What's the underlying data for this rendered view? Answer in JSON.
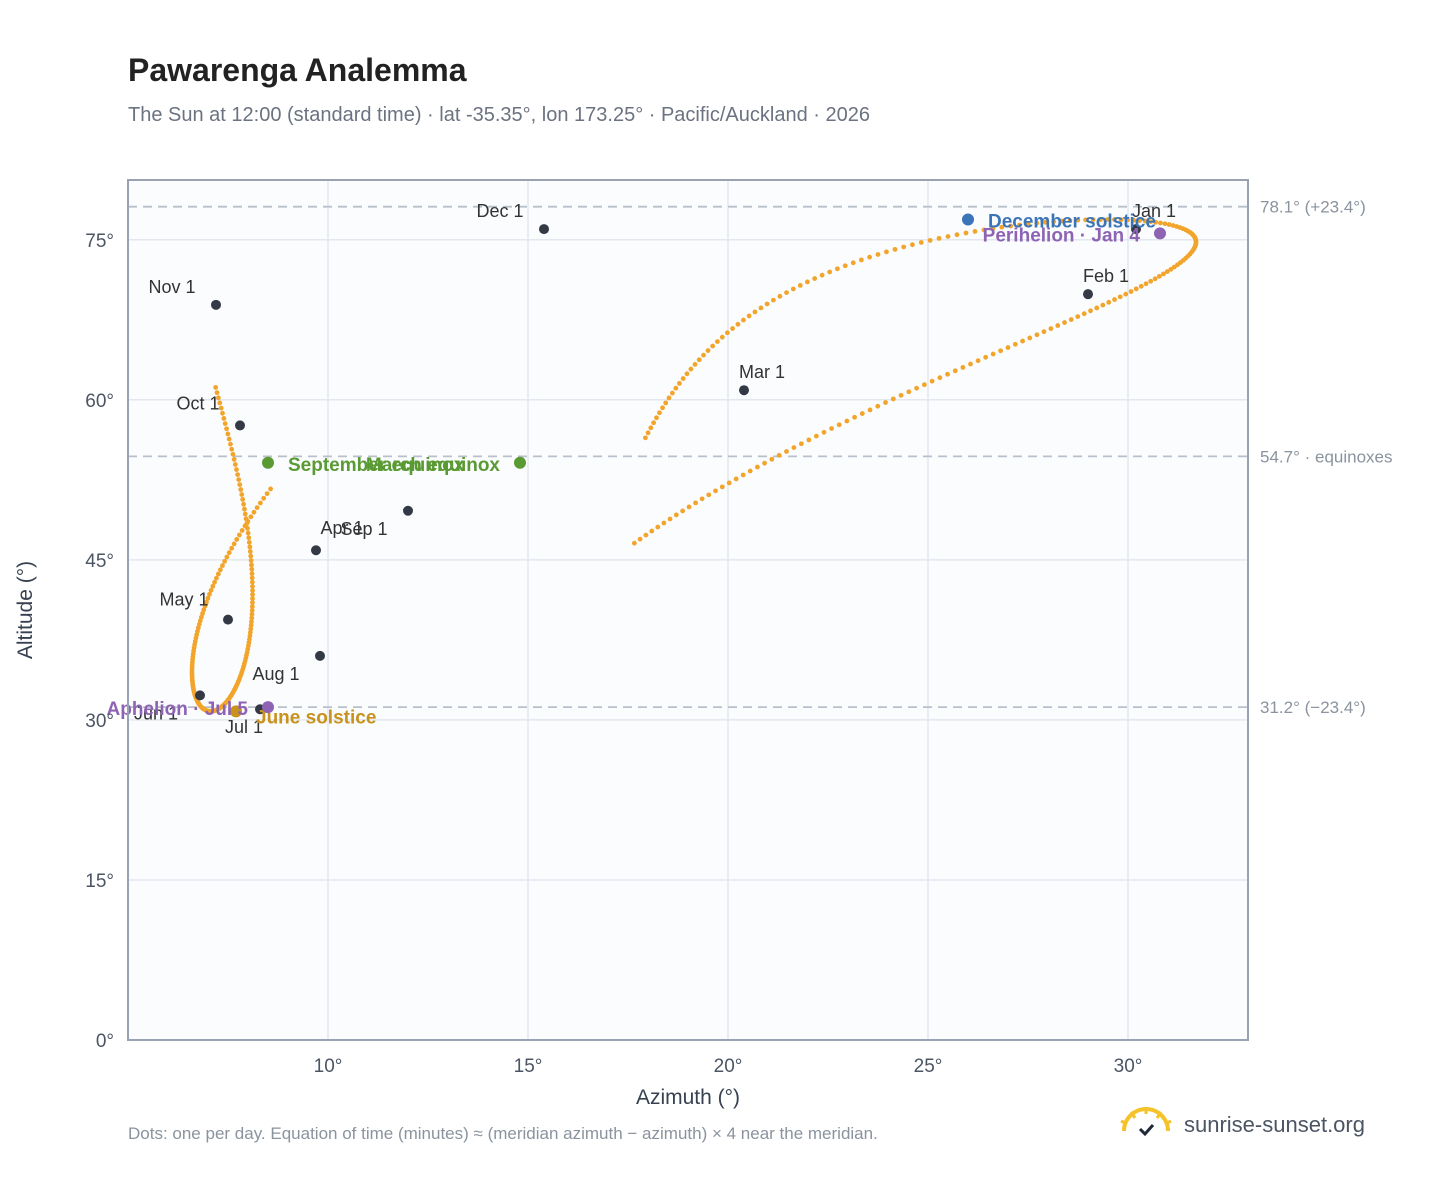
{
  "header": {
    "title": "Pawarenga Analemma",
    "subtitle": "The Sun at 12:00 (standard time) · lat -35.35°, lon 173.25° · Pacific/Auckland · 2026"
  },
  "footer": {
    "note": "Dots: one per day. Equation of time (minutes) ≈ (meridian azimuth − azimuth) × 4 near the meridian.",
    "brand": "sunrise-sunset.org"
  },
  "colors": {
    "curve": "#f2a42b",
    "month_dot": "#333a45",
    "solstice_december": "#3b74b8",
    "solstice_june": "#c8921c",
    "equinox": "#5a9a33",
    "apsis": "#8e63b4",
    "plot_bg": "#fafcfe",
    "grid": "#e3e8ef",
    "frame": "#98a2b3",
    "ref_line": "#b8c0cc"
  },
  "chart_data": {
    "type": "scatter",
    "xlabel": "Azimuth (°)",
    "ylabel": "Altitude (°)",
    "xlim": [
      5,
      33
    ],
    "ylim": [
      0,
      80.6
    ],
    "x_ticks": [
      {
        "value": 10,
        "label": "10°"
      },
      {
        "value": 15,
        "label": "15°"
      },
      {
        "value": 20,
        "label": "20°"
      },
      {
        "value": 25,
        "label": "25°"
      },
      {
        "value": 30,
        "label": "30°"
      }
    ],
    "y_ticks": [
      {
        "value": 0,
        "label": "0°"
      },
      {
        "value": 15,
        "label": "15°"
      },
      {
        "value": 30,
        "label": "30°"
      },
      {
        "value": 45,
        "label": "45°"
      },
      {
        "value": 60,
        "label": "60°"
      },
      {
        "value": 75,
        "label": "75°"
      }
    ],
    "grid": true,
    "reference_lines": [
      {
        "y": 78.1,
        "label": "78.1° (+23.4°)"
      },
      {
        "y": 54.7,
        "label": "54.7° · equinoxes"
      },
      {
        "y": 31.2,
        "label": "31.2° (−23.4°)"
      }
    ],
    "months": [
      {
        "label": "Jan 1",
        "az": 30.2,
        "alt": 76.0
      },
      {
        "label": "Feb 1",
        "az": 29.0,
        "alt": 69.9
      },
      {
        "label": "Mar 1",
        "az": 20.4,
        "alt": 60.9
      },
      {
        "label": "Apr 1",
        "az": 9.7,
        "alt": 45.9
      },
      {
        "label": "May 1",
        "az": 7.5,
        "alt": 39.4
      },
      {
        "label": "Jun 1",
        "az": 6.8,
        "alt": 32.3
      },
      {
        "label": "Jul 1",
        "az": 8.3,
        "alt": 31.0
      },
      {
        "label": "Aug 1",
        "az": 9.8,
        "alt": 36.0
      },
      {
        "label": "Sep 1",
        "az": 12.0,
        "alt": 49.6
      },
      {
        "label": "Oct 1",
        "az": 7.8,
        "alt": 57.6
      },
      {
        "label": "Nov 1",
        "az": 7.2,
        "alt": 68.9
      },
      {
        "label": "Dec 1",
        "az": 15.4,
        "alt": 76.0
      }
    ],
    "events": [
      {
        "label": "December solstice",
        "az": 26.0,
        "alt": 76.9,
        "kind": "solstice_december",
        "anchor": "start"
      },
      {
        "label": "Perihelion · Jan 4",
        "az": 30.8,
        "alt": 75.6,
        "kind": "apsis",
        "anchor": "end"
      },
      {
        "label": "March equinox",
        "az": 14.8,
        "alt": 54.1,
        "kind": "equinox",
        "anchor": "end"
      },
      {
        "label": "September equinox",
        "az": 8.5,
        "alt": 54.1,
        "kind": "equinox",
        "anchor": "start"
      },
      {
        "label": "June solstice",
        "az": 7.7,
        "alt": 30.8,
        "kind": "solstice_june",
        "anchor": "start"
      },
      {
        "label": "Aphelion · Jul 5",
        "az": 8.5,
        "alt": 31.2,
        "kind": "apsis",
        "anchor": "end"
      }
    ]
  }
}
